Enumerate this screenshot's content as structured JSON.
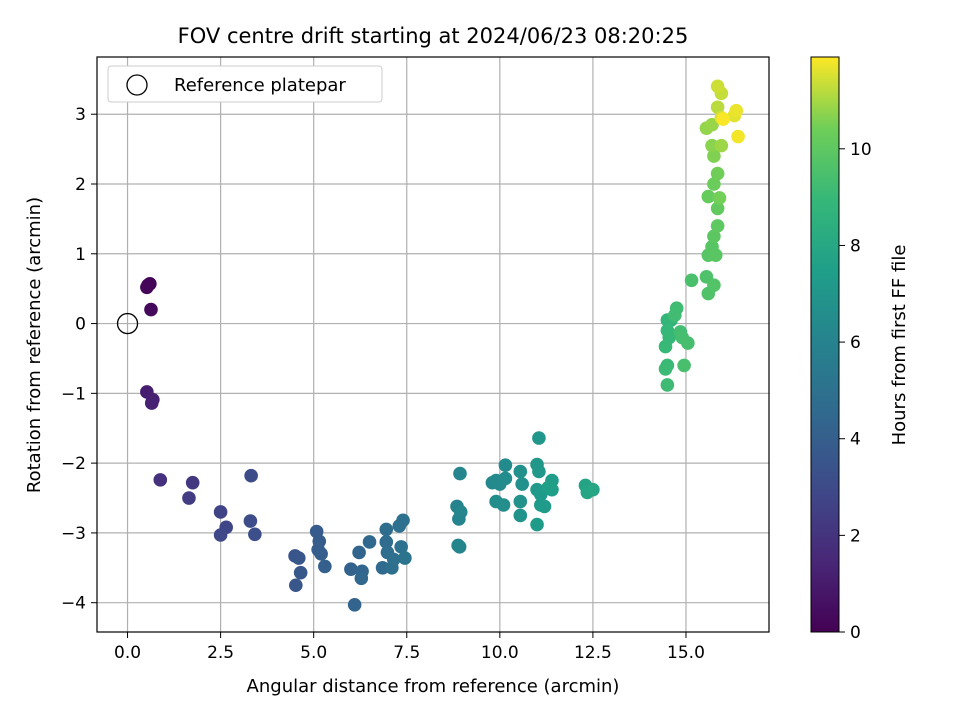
{
  "chart_data": {
    "type": "scatter",
    "title": "FOV centre drift starting at 2024/06/23 08:20:25",
    "xlabel": "Angular distance from reference (arcmin)",
    "ylabel": "Rotation from reference (arcmin)",
    "xlim": [
      -0.82,
      17.23
    ],
    "ylim": [
      -4.42,
      3.82
    ],
    "xticks": [
      0.0,
      2.5,
      5.0,
      7.5,
      10.0,
      12.5,
      15.0
    ],
    "xtick_labels": [
      "0.0",
      "2.5",
      "5.0",
      "7.5",
      "10.0",
      "12.5",
      "15.0"
    ],
    "yticks": [
      -4,
      -3,
      -2,
      -1,
      0,
      1,
      2,
      3
    ],
    "ytick_labels": [
      "−4",
      "−3",
      "−2",
      "−1",
      "0",
      "1",
      "2",
      "3"
    ],
    "grid": true,
    "legend": {
      "position": "top-left",
      "entries": [
        "Reference platepar"
      ]
    },
    "reference_point": {
      "x": 0.0,
      "y": 0.0
    },
    "colorbar": {
      "label": "Hours from first FF file",
      "colormap": "viridis",
      "range": [
        0,
        11.9
      ],
      "ticks": [
        0,
        2,
        4,
        6,
        8,
        10
      ],
      "tick_labels": [
        "0",
        "2",
        "4",
        "6",
        "8",
        "10"
      ]
    },
    "points": [
      {
        "x": 0.55,
        "y": 0.55,
        "c": 0.1
      },
      {
        "x": 0.6,
        "y": 0.57,
        "c": 0.15
      },
      {
        "x": 0.52,
        "y": 0.52,
        "c": 0.2
      },
      {
        "x": 0.63,
        "y": 0.2,
        "c": 0.3
      },
      {
        "x": 0.52,
        "y": -0.98,
        "c": 1.1
      },
      {
        "x": 0.68,
        "y": -1.09,
        "c": 1.2
      },
      {
        "x": 0.65,
        "y": -1.14,
        "c": 1.25
      },
      {
        "x": 0.88,
        "y": -2.24,
        "c": 1.9
      },
      {
        "x": 1.75,
        "y": -2.28,
        "c": 2.2
      },
      {
        "x": 1.65,
        "y": -2.5,
        "c": 2.4
      },
      {
        "x": 2.5,
        "y": -2.7,
        "c": 2.7
      },
      {
        "x": 2.65,
        "y": -2.92,
        "c": 2.8
      },
      {
        "x": 2.5,
        "y": -3.03,
        "c": 2.9
      },
      {
        "x": 3.32,
        "y": -2.18,
        "c": 3.0
      },
      {
        "x": 3.3,
        "y": -2.83,
        "c": 3.1
      },
      {
        "x": 3.42,
        "y": -3.02,
        "c": 3.2
      },
      {
        "x": 4.5,
        "y": -3.33,
        "c": 3.5
      },
      {
        "x": 4.6,
        "y": -3.36,
        "c": 3.55
      },
      {
        "x": 4.52,
        "y": -3.75,
        "c": 3.6
      },
      {
        "x": 4.65,
        "y": -3.57,
        "c": 3.65
      },
      {
        "x": 5.08,
        "y": -2.98,
        "c": 3.8
      },
      {
        "x": 5.15,
        "y": -3.12,
        "c": 3.85
      },
      {
        "x": 5.12,
        "y": -3.24,
        "c": 3.9
      },
      {
        "x": 5.2,
        "y": -3.3,
        "c": 3.95
      },
      {
        "x": 5.3,
        "y": -3.48,
        "c": 4.0
      },
      {
        "x": 6.0,
        "y": -3.52,
        "c": 4.2
      },
      {
        "x": 6.1,
        "y": -4.03,
        "c": 4.25
      },
      {
        "x": 6.22,
        "y": -3.28,
        "c": 4.3
      },
      {
        "x": 6.3,
        "y": -3.55,
        "c": 4.35
      },
      {
        "x": 6.28,
        "y": -3.65,
        "c": 4.4
      },
      {
        "x": 6.5,
        "y": -3.13,
        "c": 4.5
      },
      {
        "x": 6.85,
        "y": -3.5,
        "c": 4.6
      },
      {
        "x": 6.95,
        "y": -3.13,
        "c": 4.7
      },
      {
        "x": 6.95,
        "y": -2.95,
        "c": 4.75
      },
      {
        "x": 6.98,
        "y": -3.28,
        "c": 4.8
      },
      {
        "x": 7.1,
        "y": -3.5,
        "c": 4.85
      },
      {
        "x": 7.15,
        "y": -3.38,
        "c": 4.9
      },
      {
        "x": 7.3,
        "y": -2.9,
        "c": 4.95
      },
      {
        "x": 7.4,
        "y": -2.82,
        "c": 5.0
      },
      {
        "x": 7.35,
        "y": -3.2,
        "c": 5.05
      },
      {
        "x": 7.45,
        "y": -3.36,
        "c": 5.1
      },
      {
        "x": 8.85,
        "y": -2.62,
        "c": 6.0
      },
      {
        "x": 8.9,
        "y": -2.8,
        "c": 6.05
      },
      {
        "x": 8.88,
        "y": -3.18,
        "c": 6.1
      },
      {
        "x": 8.92,
        "y": -3.2,
        "c": 6.12
      },
      {
        "x": 8.95,
        "y": -2.7,
        "c": 6.15
      },
      {
        "x": 8.93,
        "y": -2.15,
        "c": 6.2
      },
      {
        "x": 9.8,
        "y": -2.28,
        "c": 6.3
      },
      {
        "x": 9.9,
        "y": -2.25,
        "c": 6.35
      },
      {
        "x": 10.0,
        "y": -2.3,
        "c": 6.4
      },
      {
        "x": 10.15,
        "y": -2.03,
        "c": 6.45
      },
      {
        "x": 10.15,
        "y": -2.22,
        "c": 6.5
      },
      {
        "x": 9.9,
        "y": -2.55,
        "c": 6.55
      },
      {
        "x": 10.1,
        "y": -2.6,
        "c": 6.6
      },
      {
        "x": 10.55,
        "y": -2.12,
        "c": 6.7
      },
      {
        "x": 10.6,
        "y": -2.3,
        "c": 6.75
      },
      {
        "x": 10.55,
        "y": -2.55,
        "c": 6.8
      },
      {
        "x": 10.55,
        "y": -2.75,
        "c": 6.85
      },
      {
        "x": 11.05,
        "y": -1.64,
        "c": 7.0
      },
      {
        "x": 11.0,
        "y": -2.02,
        "c": 7.05
      },
      {
        "x": 11.05,
        "y": -2.12,
        "c": 7.1
      },
      {
        "x": 11.0,
        "y": -2.38,
        "c": 7.15
      },
      {
        "x": 11.1,
        "y": -2.45,
        "c": 7.2
      },
      {
        "x": 11.1,
        "y": -2.6,
        "c": 7.25
      },
      {
        "x": 11.2,
        "y": -2.62,
        "c": 7.3
      },
      {
        "x": 11.0,
        "y": -2.88,
        "c": 7.35
      },
      {
        "x": 11.4,
        "y": -2.25,
        "c": 7.4
      },
      {
        "x": 11.4,
        "y": -2.38,
        "c": 7.45
      },
      {
        "x": 11.3,
        "y": -2.35,
        "c": 7.5
      },
      {
        "x": 12.3,
        "y": -2.32,
        "c": 7.8
      },
      {
        "x": 12.35,
        "y": -2.42,
        "c": 7.85
      },
      {
        "x": 12.5,
        "y": -2.38,
        "c": 7.9
      },
      {
        "x": 14.5,
        "y": 0.05,
        "c": 8.8
      },
      {
        "x": 14.6,
        "y": 0.05,
        "c": 8.85
      },
      {
        "x": 14.5,
        "y": -0.1,
        "c": 8.9
      },
      {
        "x": 14.55,
        "y": -0.2,
        "c": 8.95
      },
      {
        "x": 14.45,
        "y": -0.33,
        "c": 9.0
      },
      {
        "x": 14.5,
        "y": -0.6,
        "c": 9.05
      },
      {
        "x": 14.45,
        "y": -0.65,
        "c": 9.1
      },
      {
        "x": 14.5,
        "y": -0.88,
        "c": 9.15
      },
      {
        "x": 14.75,
        "y": 0.22,
        "c": 9.2
      },
      {
        "x": 14.7,
        "y": 0.12,
        "c": 9.25
      },
      {
        "x": 14.85,
        "y": -0.12,
        "c": 9.3
      },
      {
        "x": 14.9,
        "y": -0.2,
        "c": 9.35
      },
      {
        "x": 15.05,
        "y": -0.28,
        "c": 9.4
      },
      {
        "x": 14.95,
        "y": -0.6,
        "c": 9.45
      },
      {
        "x": 15.15,
        "y": 0.62,
        "c": 9.5
      },
      {
        "x": 15.55,
        "y": 0.67,
        "c": 9.6
      },
      {
        "x": 15.6,
        "y": 0.43,
        "c": 9.65
      },
      {
        "x": 15.75,
        "y": 0.55,
        "c": 9.7
      },
      {
        "x": 15.6,
        "y": 0.98,
        "c": 9.8
      },
      {
        "x": 15.7,
        "y": 1.1,
        "c": 9.85
      },
      {
        "x": 15.8,
        "y": 0.98,
        "c": 9.9
      },
      {
        "x": 15.75,
        "y": 1.25,
        "c": 9.95
      },
      {
        "x": 15.85,
        "y": 1.4,
        "c": 10.0
      },
      {
        "x": 15.85,
        "y": 1.65,
        "c": 10.1
      },
      {
        "x": 15.6,
        "y": 1.82,
        "c": 10.2
      },
      {
        "x": 15.75,
        "y": 2.0,
        "c": 10.3
      },
      {
        "x": 15.85,
        "y": 2.15,
        "c": 10.4
      },
      {
        "x": 15.9,
        "y": 1.8,
        "c": 10.45
      },
      {
        "x": 15.75,
        "y": 2.4,
        "c": 10.6
      },
      {
        "x": 15.7,
        "y": 2.55,
        "c": 10.7
      },
      {
        "x": 15.55,
        "y": 2.8,
        "c": 10.8
      },
      {
        "x": 15.7,
        "y": 2.85,
        "c": 10.85
      },
      {
        "x": 15.95,
        "y": 2.55,
        "c": 10.9
      },
      {
        "x": 15.85,
        "y": 3.1,
        "c": 11.2
      },
      {
        "x": 15.95,
        "y": 3.3,
        "c": 11.3
      },
      {
        "x": 15.85,
        "y": 3.4,
        "c": 11.4
      },
      {
        "x": 15.95,
        "y": 2.95,
        "c": 11.5
      },
      {
        "x": 16.3,
        "y": 2.98,
        "c": 11.6
      },
      {
        "x": 16.35,
        "y": 3.05,
        "c": 11.7
      },
      {
        "x": 16.4,
        "y": 2.68,
        "c": 11.8
      },
      {
        "x": 16.0,
        "y": 2.93,
        "c": 11.85
      }
    ]
  }
}
